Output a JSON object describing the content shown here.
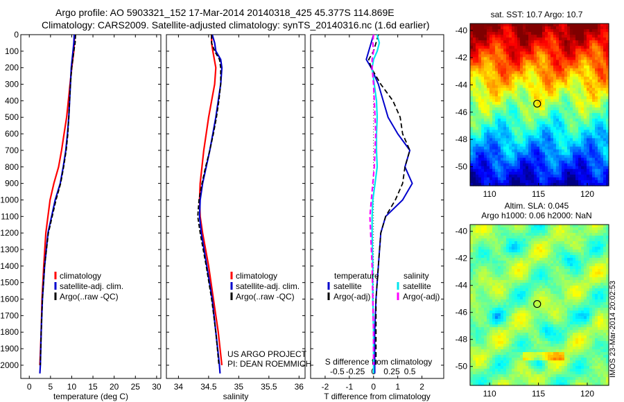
{
  "header": {
    "title_line1": "Argo profile: AO 5903321_152 17-Mar-2014 20140318_425 45.377S 114.869E",
    "title_line2": "Climatology: CARS2009. Satellite-adjusted climatology: synTS_20140316.nc (1.6d earlier)"
  },
  "credit": {
    "line1": "US ARGO PROJECT",
    "line2": "PI: DEAN ROEMMICH"
  },
  "stamp": "IMOS 23-Mar-2014 20:02:53",
  "maps": {
    "sst_title": "sat. SST: 10.7  Argo: 10.7",
    "sla_title_line1": "Altim. SLA: 0.045",
    "sla_title_line2": "Argo h1000: 0.06 h2000: NaN"
  },
  "colors": {
    "climatology": "#ff0000",
    "satellite": "#0000cc",
    "argo": "#000000",
    "sal_satellite": "#00e5ee",
    "sal_argo": "#ff00ff"
  },
  "chart_data": [
    {
      "type": "line",
      "xlabel": "temperature (deg C)",
      "ylabel": "",
      "xlim": [
        -2,
        31
      ],
      "ylim": [
        2080,
        0
      ],
      "xticks": [
        0,
        5,
        10,
        15,
        20,
        25,
        30
      ],
      "yticks": [
        0,
        100,
        200,
        300,
        400,
        500,
        600,
        700,
        800,
        900,
        1000,
        1100,
        1200,
        1300,
        1400,
        1500,
        1600,
        1700,
        1800,
        1900,
        2000
      ],
      "legend": [
        "climatology",
        "satellite-adj. clim.",
        "Argo(..raw -QC)"
      ],
      "series": [
        {
          "name": "climatology",
          "depth": [
            0,
            50,
            100,
            200,
            300,
            400,
            500,
            600,
            700,
            800,
            900,
            1000,
            1200,
            1400,
            1600,
            1800,
            2000
          ],
          "values": [
            10.7,
            10.6,
            10.5,
            10.0,
            9.6,
            9.2,
            8.8,
            8.2,
            7.6,
            6.9,
            5.8,
            4.9,
            3.9,
            3.4,
            3.0,
            2.8,
            2.5
          ]
        },
        {
          "name": "satellite-adj. clim.",
          "depth": [
            0,
            50,
            100,
            200,
            300,
            400,
            500,
            600,
            700,
            800,
            900,
            1000,
            1200,
            1400,
            1600,
            1800,
            2000,
            2050
          ],
          "values": [
            10.6,
            10.5,
            10.3,
            9.9,
            9.7,
            9.5,
            9.3,
            9.0,
            8.6,
            8.0,
            7.3,
            6.1,
            4.4,
            3.6,
            3.1,
            2.8,
            2.6,
            2.5
          ]
        },
        {
          "name": "Argo(..raw -QC)",
          "depth": [
            0,
            50,
            100,
            200,
            300,
            400,
            500,
            600,
            700,
            800,
            900,
            1000,
            1200,
            1400,
            1600,
            1800,
            2000
          ],
          "values": [
            10.9,
            10.8,
            10.5,
            10.0,
            9.7,
            9.5,
            9.3,
            9.1,
            8.7,
            8.1,
            7.4,
            6.3,
            4.5,
            3.6,
            3.1,
            2.8,
            2.6
          ]
        }
      ]
    },
    {
      "type": "line",
      "xlabel": "salinity",
      "ylabel": "",
      "xlim": [
        33.8,
        36.1
      ],
      "ylim": [
        2080,
        0
      ],
      "xticks": [
        34,
        34.5,
        35,
        35.5,
        36
      ],
      "xticklabels": [
        "34",
        "34.5",
        "35",
        "35.5",
        "36"
      ],
      "legend": [
        "climatology",
        "satellite-adj. clim.",
        "Argo(..raw -QC)"
      ],
      "series": [
        {
          "name": "climatology",
          "depth": [
            0,
            50,
            100,
            200,
            300,
            400,
            500,
            600,
            700,
            800,
            900,
            1000,
            1100,
            1200,
            1400,
            1600,
            1800,
            2000
          ],
          "values": [
            34.55,
            34.55,
            34.57,
            34.62,
            34.6,
            34.55,
            34.5,
            34.46,
            34.42,
            34.39,
            34.36,
            34.35,
            34.36,
            34.4,
            34.5,
            34.58,
            34.66,
            34.72
          ]
        },
        {
          "name": "satellite-adj. clim.",
          "depth": [
            0,
            50,
            100,
            150,
            200,
            300,
            400,
            500,
            600,
            700,
            800,
            900,
            1000,
            1100,
            1200,
            1400,
            1600,
            1800,
            2000,
            2050
          ],
          "values": [
            34.56,
            34.6,
            34.62,
            34.7,
            34.72,
            34.7,
            34.66,
            34.62,
            34.57,
            34.52,
            34.46,
            34.4,
            34.36,
            34.35,
            34.38,
            34.47,
            34.56,
            34.62,
            34.68,
            34.69
          ]
        },
        {
          "name": "Argo(..raw -QC)",
          "depth": [
            0,
            50,
            100,
            150,
            200,
            300,
            400,
            500,
            600,
            700,
            800,
            900,
            1000,
            1100,
            1200,
            1400,
            1600,
            1800,
            2000
          ],
          "values": [
            34.55,
            34.55,
            34.6,
            34.68,
            34.7,
            34.7,
            34.67,
            34.63,
            34.58,
            34.52,
            34.45,
            34.39,
            34.34,
            34.32,
            34.36,
            34.46,
            34.55,
            34.62,
            34.67
          ]
        }
      ]
    },
    {
      "type": "line",
      "xlabel": "T difference from climatology",
      "top_label": "S difference from climatology",
      "xlim": [
        -2.6,
        2.9
      ],
      "ylim": [
        2080,
        0
      ],
      "xticks": [
        -2,
        -1,
        0,
        1,
        2
      ],
      "xticklabels": [
        "-2",
        "-1",
        "0",
        "1",
        "2"
      ],
      "top_ticklabels": [
        "-0.5",
        "-0.25",
        "0",
        "0.25",
        "0.5"
      ],
      "legend_headers": [
        "temperature",
        "salinity"
      ],
      "legend": [
        "satellite",
        "Argo(-adj)",
        "satellite",
        "Argo(-adj)"
      ],
      "series": [
        {
          "name": "temperature satellite",
          "depth": [
            0,
            50,
            100,
            150,
            200,
            300,
            400,
            500,
            600,
            700,
            800,
            900,
            1000,
            1100,
            1200,
            1400,
            1600,
            1800,
            2000,
            2050
          ],
          "values": [
            0.0,
            -0.1,
            -0.2,
            -0.3,
            -0.1,
            0.2,
            0.4,
            0.6,
            1.0,
            1.5,
            1.3,
            1.6,
            1.2,
            0.5,
            0.3,
            0.2,
            0.1,
            0.05,
            0.05,
            0.05
          ]
        },
        {
          "name": "temperature Argo(-adj)",
          "depth": [
            0,
            50,
            100,
            150,
            200,
            300,
            400,
            500,
            600,
            700,
            800,
            900,
            1000,
            1100,
            1200,
            1400,
            1600,
            1800,
            2000
          ],
          "values": [
            0.2,
            0.1,
            0.0,
            -0.2,
            -0.1,
            0.3,
            0.8,
            1.1,
            1.2,
            1.5,
            1.3,
            1.2,
            0.9,
            0.5,
            0.3,
            0.2,
            0.1,
            0.1,
            0.1
          ]
        },
        {
          "name": "salinity satellite",
          "depth": [
            0,
            50,
            100,
            150,
            200,
            300,
            400,
            500,
            600,
            700,
            800,
            900,
            1000,
            1100,
            1200,
            1400,
            1600,
            1800,
            2000,
            2050
          ],
          "values": [
            0.05,
            0.08,
            0.05,
            0.0,
            -0.02,
            0.01,
            0.04,
            0.05,
            0.04,
            0.04,
            0.05,
            0.02,
            -0.01,
            -0.02,
            -0.02,
            -0.01,
            -0.01,
            0.0,
            0.0,
            0.0
          ]
        },
        {
          "name": "salinity Argo(-adj)",
          "depth": [
            0,
            50,
            100,
            150,
            200,
            300,
            400,
            500,
            600,
            700,
            800,
            900,
            1000,
            1100,
            1200,
            1400,
            1600,
            1800,
            2000
          ],
          "values": [
            0.0,
            -0.01,
            0.0,
            -0.02,
            -0.02,
            0.0,
            0.01,
            0.02,
            0.03,
            0.02,
            0.01,
            -0.01,
            -0.03,
            -0.05,
            -0.04,
            -0.02,
            -0.01,
            0.0,
            0.0
          ]
        }
      ]
    },
    {
      "type": "heatmap",
      "title": "sat. SST: 10.7  Argo: 10.7",
      "xticks": [
        110,
        115,
        120
      ],
      "yticks": [
        -40,
        -42,
        -44,
        -46,
        -48,
        -50
      ],
      "xlim": [
        108,
        122.2
      ],
      "ylim": [
        -51.4,
        -39.5
      ],
      "marker": [
        114.869,
        -45.377
      ]
    },
    {
      "type": "heatmap",
      "title": "Altim. SLA: 0.045",
      "xticks": [
        110,
        115,
        120
      ],
      "yticks": [
        -40,
        -42,
        -44,
        -46,
        -48,
        -50
      ],
      "xlim": [
        108,
        122.2
      ],
      "ylim": [
        -51.4,
        -39.5
      ],
      "marker": [
        114.869,
        -45.377
      ]
    }
  ]
}
